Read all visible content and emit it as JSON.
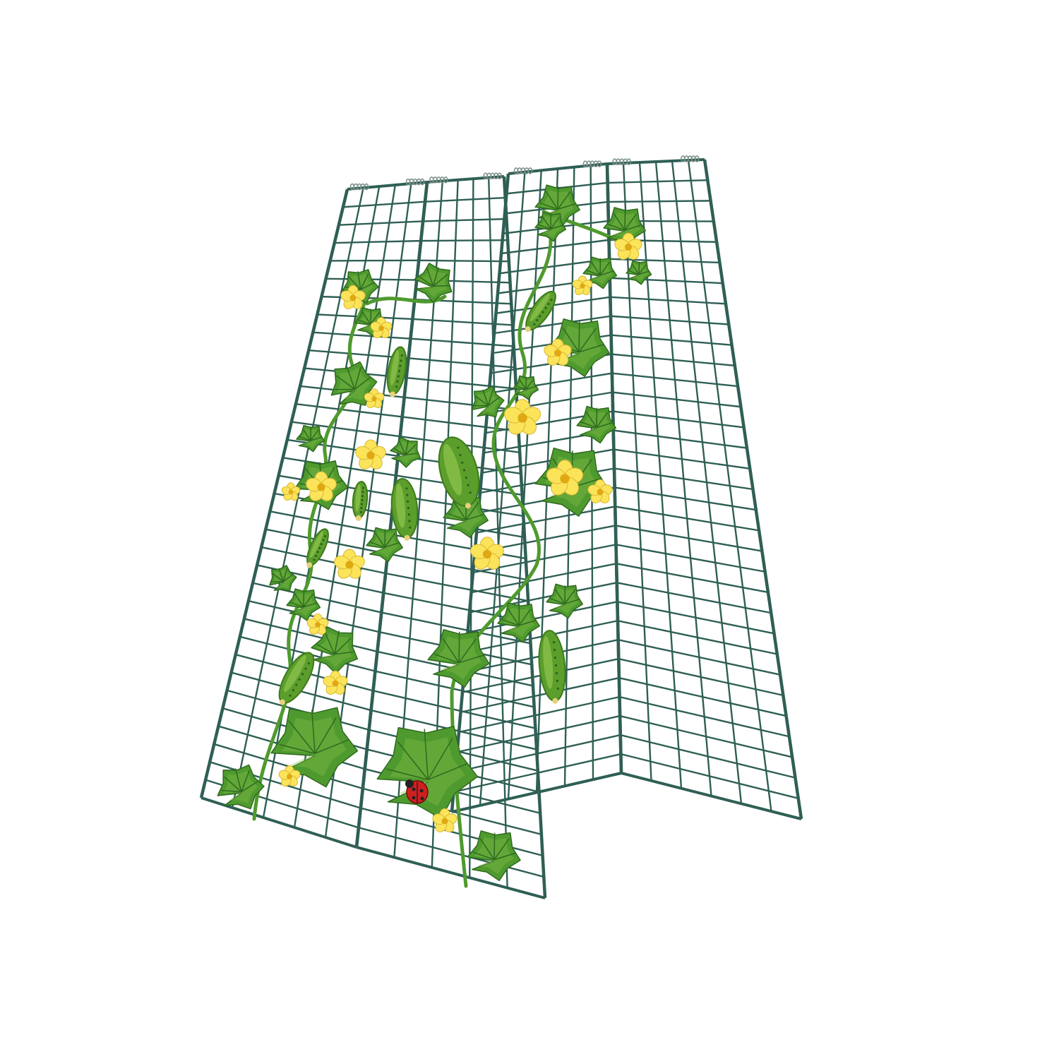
{
  "scene": {
    "subject": "a-frame-trellis",
    "background_color": "#ffffff",
    "colors": {
      "wire": "#2f5f55",
      "leaf": "#4f9a2e",
      "leaf_light": "#86c04a",
      "leaf_vein": "#2f6a1f",
      "flower": "#fbe45a",
      "flower_center": "#e0a814",
      "cucumber": "#5c9e2c",
      "cucumber_light": "#9fcf5a",
      "ladybug": "#d11f1f"
    },
    "panels": 4,
    "icons": [
      "trellis-icon",
      "leaf-icon",
      "flower-icon",
      "cucumber-icon",
      "ladybug-icon"
    ]
  }
}
